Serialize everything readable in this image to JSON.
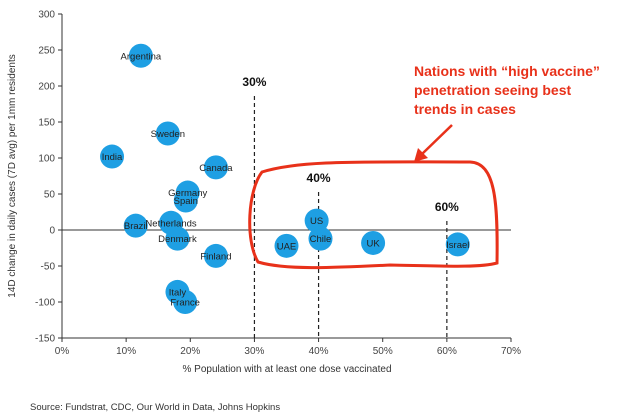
{
  "chart_data": {
    "type": "scatter",
    "title": "",
    "xlabel": "% Population with at least one dose vaccinated",
    "ylabel": "14D change in daily cases (7D avg) per 1mm residents",
    "xlim": [
      0,
      70
    ],
    "ylim": [
      -150,
      300
    ],
    "x_ticks": [
      "0%",
      "10%",
      "20%",
      "30%",
      "40%",
      "50%",
      "60%",
      "70%"
    ],
    "y_ticks": [
      "300",
      "250",
      "200",
      "150",
      "100",
      "50",
      "0",
      "-50",
      "-100",
      "-150"
    ],
    "x_tick_values": [
      0,
      10,
      20,
      30,
      40,
      50,
      60,
      70
    ],
    "y_tick_values": [
      300,
      250,
      200,
      150,
      100,
      50,
      0,
      -50,
      -100,
      -150
    ],
    "points": [
      {
        "label": "Argentina",
        "x": 12.3,
        "y": 242
      },
      {
        "label": "Sweden",
        "x": 16.5,
        "y": 134
      },
      {
        "label": "India",
        "x": 7.8,
        "y": 102
      },
      {
        "label": "Canada",
        "x": 24.0,
        "y": 87
      },
      {
        "label": "Germany",
        "x": 19.6,
        "y": 52
      },
      {
        "label": "Spain",
        "x": 19.3,
        "y": 41
      },
      {
        "label": "Brazil",
        "x": 11.5,
        "y": 6
      },
      {
        "label": "Netherlands",
        "x": 17.0,
        "y": 10
      },
      {
        "label": "Denmark",
        "x": 18.0,
        "y": -12
      },
      {
        "label": "Finland",
        "x": 24.0,
        "y": -36
      },
      {
        "label": "Italy",
        "x": 18.0,
        "y": -86
      },
      {
        "label": "France",
        "x": 19.2,
        "y": -100
      },
      {
        "label": "US",
        "x": 39.7,
        "y": 13
      },
      {
        "label": "Chile",
        "x": 40.3,
        "y": -12
      },
      {
        "label": "UAE",
        "x": 35.0,
        "y": -22
      },
      {
        "label": "UK",
        "x": 48.5,
        "y": -18
      },
      {
        "label": "Israel",
        "x": 61.7,
        "y": -20
      }
    ],
    "reference_lines": [
      {
        "label": "30%",
        "x": 30
      },
      {
        "label": "40%",
        "x": 40
      },
      {
        "label": "60%",
        "x": 60
      }
    ],
    "annotation": "Nations with “high vaccine” penetration seeing best trends in cases",
    "annotation_lines": [
      "Nations with “high vaccine”",
      "penetration seeing best",
      "trends in cases"
    ],
    "colors": {
      "marker": "#1e9fe3",
      "annotation": "#e8311a",
      "axis": "#333333"
    }
  },
  "source": "Source:  Fundstrat,  CDC, Our World in Data,  Johns Hopkins"
}
